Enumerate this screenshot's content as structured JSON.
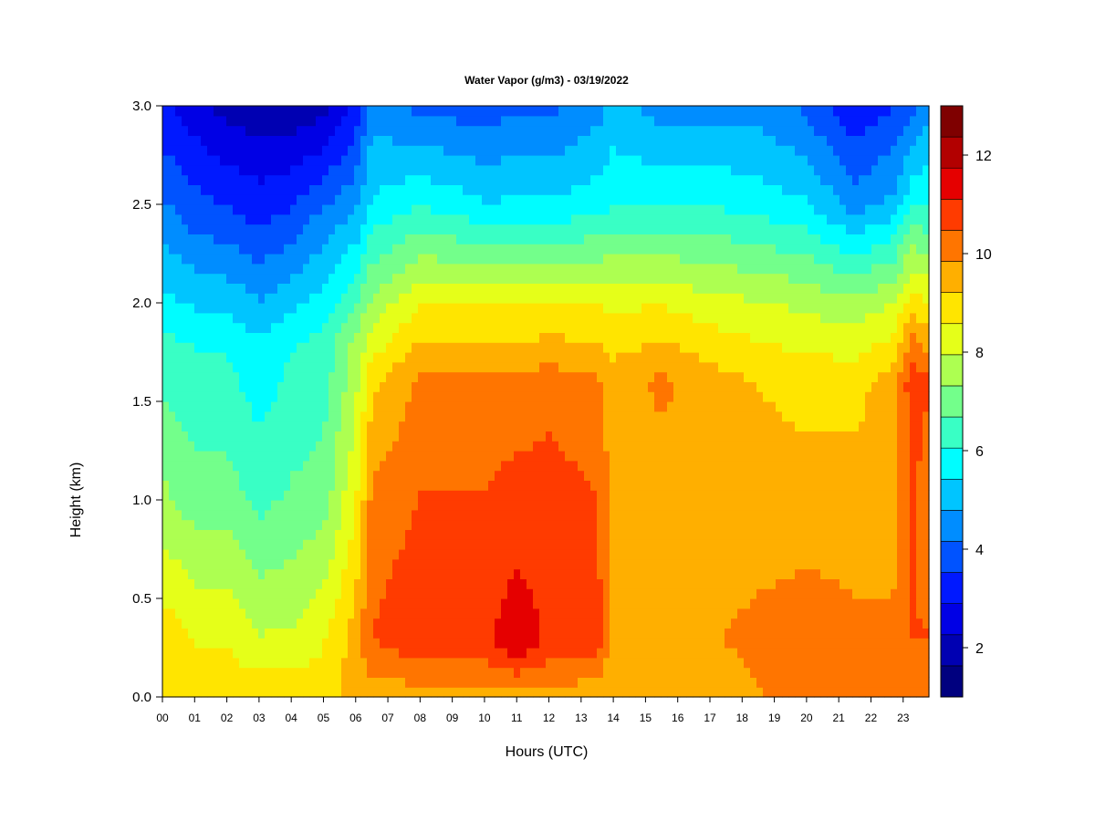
{
  "chart_data": {
    "type": "heatmap",
    "title": "Water Vapor (g/m3) - 03/19/2022",
    "xlabel": "Hours (UTC)",
    "ylabel": "Height (km)",
    "xlim": [
      0,
      23.8
    ],
    "ylim": [
      0.0,
      3.0
    ],
    "x_ticks": [
      "00",
      "01",
      "02",
      "03",
      "04",
      "05",
      "06",
      "07",
      "08",
      "09",
      "10",
      "11",
      "12",
      "13",
      "14",
      "15",
      "16",
      "17",
      "18",
      "19",
      "20",
      "21",
      "22",
      "23"
    ],
    "y_ticks": [
      "0.0",
      "0.5",
      "1.0",
      "1.5",
      "2.0",
      "2.5",
      "3.0"
    ],
    "colorbar": {
      "min": 1,
      "max": 13,
      "ticks": [
        "2",
        "4",
        "6",
        "8",
        "10",
        "12"
      ],
      "colors": [
        "#00007f",
        "#0000b2",
        "#0000e5",
        "#0019ff",
        "#0053ff",
        "#008dff",
        "#00c5ff",
        "#00fdff",
        "#39ffc5",
        "#73ff8b",
        "#adff51",
        "#e5ff19",
        "#ffe500",
        "#ffaf00",
        "#ff7500",
        "#ff3b00",
        "#e50000",
        "#b20000",
        "#7f0000"
      ]
    },
    "hour_profiles": [
      {
        "hour": 0.0,
        "profile": [
          [
            0.0,
            9.0
          ],
          [
            0.3,
            9.0
          ],
          [
            1.0,
            7.5
          ],
          [
            1.8,
            6.2
          ],
          [
            2.4,
            4.5
          ],
          [
            3.0,
            3.0
          ]
        ]
      },
      {
        "hour": 1.0,
        "profile": [
          [
            0.0,
            9.0
          ],
          [
            0.3,
            8.5
          ],
          [
            1.0,
            7.0
          ],
          [
            1.8,
            6.0
          ],
          [
            2.4,
            4.0
          ],
          [
            3.0,
            2.5
          ]
        ]
      },
      {
        "hour": 2.0,
        "profile": [
          [
            0.0,
            9.0
          ],
          [
            0.3,
            8.5
          ],
          [
            1.0,
            7.0
          ],
          [
            1.8,
            6.0
          ],
          [
            2.4,
            3.8
          ],
          [
            3.0,
            2.0
          ]
        ]
      },
      {
        "hour": 3.0,
        "profile": [
          [
            0.0,
            9.0
          ],
          [
            0.3,
            8.0
          ],
          [
            1.0,
            6.5
          ],
          [
            1.8,
            5.5
          ],
          [
            2.4,
            3.5
          ],
          [
            3.0,
            1.8
          ]
        ]
      },
      {
        "hour": 4.0,
        "profile": [
          [
            0.0,
            9.0
          ],
          [
            0.3,
            8.0
          ],
          [
            1.0,
            6.8
          ],
          [
            1.8,
            6.0
          ],
          [
            2.4,
            3.8
          ],
          [
            3.0,
            1.8
          ]
        ]
      },
      {
        "hour": 5.0,
        "profile": [
          [
            0.0,
            9.0
          ],
          [
            0.3,
            8.5
          ],
          [
            1.0,
            7.0
          ],
          [
            1.8,
            6.2
          ],
          [
            2.4,
            4.5
          ],
          [
            3.0,
            2.0
          ]
        ]
      },
      {
        "hour": 6.0,
        "profile": [
          [
            0.0,
            9.5
          ],
          [
            0.3,
            9.5
          ],
          [
            1.0,
            8.5
          ],
          [
            1.8,
            7.5
          ],
          [
            2.4,
            5.0
          ],
          [
            3.0,
            3.0
          ]
        ]
      },
      {
        "hour": 6.5,
        "profile": [
          [
            0.0,
            9.5
          ],
          [
            0.3,
            10.5
          ],
          [
            1.0,
            10.0
          ],
          [
            1.6,
            9.0
          ],
          [
            2.0,
            7.5
          ],
          [
            2.5,
            5.5
          ],
          [
            3.0,
            4.5
          ]
        ]
      },
      {
        "hour": 8.0,
        "profile": [
          [
            0.0,
            9.5
          ],
          [
            0.3,
            11.0
          ],
          [
            1.0,
            10.5
          ],
          [
            1.6,
            10.0
          ],
          [
            2.0,
            8.5
          ],
          [
            2.5,
            6.0
          ],
          [
            3.0,
            4.0
          ]
        ]
      },
      {
        "hour": 10.0,
        "profile": [
          [
            0.0,
            9.5
          ],
          [
            0.3,
            11.0
          ],
          [
            1.0,
            10.5
          ],
          [
            1.6,
            10.0
          ],
          [
            2.0,
            8.5
          ],
          [
            2.5,
            5.5
          ],
          [
            3.0,
            3.8
          ]
        ]
      },
      {
        "hour": 11.0,
        "profile": [
          [
            0.0,
            9.5
          ],
          [
            0.25,
            11.5
          ],
          [
            1.0,
            10.8
          ],
          [
            1.6,
            10.0
          ],
          [
            2.0,
            8.5
          ],
          [
            2.5,
            5.5
          ],
          [
            3.0,
            4.0
          ]
        ]
      },
      {
        "hour": 12.0,
        "profile": [
          [
            0.0,
            9.5
          ],
          [
            0.3,
            11.0
          ],
          [
            1.0,
            10.8
          ],
          [
            1.6,
            10.2
          ],
          [
            2.0,
            8.5
          ],
          [
            2.5,
            5.5
          ],
          [
            3.0,
            4.0
          ]
        ]
      },
      {
        "hour": 13.5,
        "profile": [
          [
            0.0,
            9.5
          ],
          [
            0.3,
            10.8
          ],
          [
            1.0,
            10.5
          ],
          [
            1.6,
            10.0
          ],
          [
            2.0,
            8.5
          ],
          [
            2.5,
            5.8
          ],
          [
            3.0,
            4.5
          ]
        ]
      },
      {
        "hour": 14.0,
        "profile": [
          [
            0.0,
            9.5
          ],
          [
            0.3,
            9.5
          ],
          [
            1.0,
            9.5
          ],
          [
            1.6,
            9.5
          ],
          [
            2.0,
            8.5
          ],
          [
            2.5,
            6.0
          ],
          [
            3.0,
            5.0
          ]
        ]
      },
      {
        "hour": 15.5,
        "profile": [
          [
            0.0,
            9.5
          ],
          [
            0.3,
            9.5
          ],
          [
            1.0,
            9.5
          ],
          [
            1.6,
            10.0
          ],
          [
            2.0,
            8.5
          ],
          [
            2.5,
            6.0
          ],
          [
            3.0,
            4.5
          ]
        ]
      },
      {
        "hour": 17.0,
        "profile": [
          [
            0.0,
            9.5
          ],
          [
            0.3,
            9.8
          ],
          [
            1.0,
            9.5
          ],
          [
            1.6,
            9.5
          ],
          [
            2.0,
            8.2
          ],
          [
            2.5,
            6.0
          ],
          [
            3.0,
            4.5
          ]
        ]
      },
      {
        "hour": 18.5,
        "profile": [
          [
            0.0,
            9.8
          ],
          [
            0.3,
            10.0
          ],
          [
            1.0,
            9.5
          ],
          [
            1.6,
            9.2
          ],
          [
            2.0,
            8.0
          ],
          [
            2.5,
            5.8
          ],
          [
            3.0,
            4.5
          ]
        ]
      },
      {
        "hour": 20.0,
        "profile": [
          [
            0.0,
            10.0
          ],
          [
            0.3,
            10.2
          ],
          [
            1.0,
            9.5
          ],
          [
            1.6,
            9.0
          ],
          [
            2.0,
            7.8
          ],
          [
            2.5,
            5.5
          ],
          [
            3.0,
            4.0
          ]
        ]
      },
      {
        "hour": 21.5,
        "profile": [
          [
            0.0,
            10.0
          ],
          [
            0.3,
            10.0
          ],
          [
            1.0,
            9.5
          ],
          [
            1.6,
            9.0
          ],
          [
            2.0,
            7.5
          ],
          [
            2.5,
            4.5
          ],
          [
            3.0,
            3.0
          ]
        ]
      },
      {
        "hour": 22.7,
        "profile": [
          [
            0.0,
            10.0
          ],
          [
            0.3,
            10.0
          ],
          [
            1.0,
            9.5
          ],
          [
            1.6,
            9.5
          ],
          [
            2.0,
            8.0
          ],
          [
            2.5,
            5.0
          ],
          [
            3.0,
            3.5
          ]
        ]
      },
      {
        "hour": 23.3,
        "profile": [
          [
            0.0,
            10.0
          ],
          [
            0.3,
            10.5
          ],
          [
            1.0,
            10.5
          ],
          [
            1.6,
            11.0
          ],
          [
            2.0,
            9.0
          ],
          [
            2.5,
            6.0
          ],
          [
            3.0,
            4.0
          ]
        ]
      },
      {
        "hour": 23.8,
        "profile": [
          [
            0.0,
            10.0
          ],
          [
            0.3,
            10.5
          ],
          [
            1.0,
            10.0
          ],
          [
            1.6,
            10.5
          ],
          [
            2.0,
            8.5
          ],
          [
            2.5,
            6.0
          ],
          [
            3.0,
            4.5
          ]
        ]
      }
    ]
  }
}
